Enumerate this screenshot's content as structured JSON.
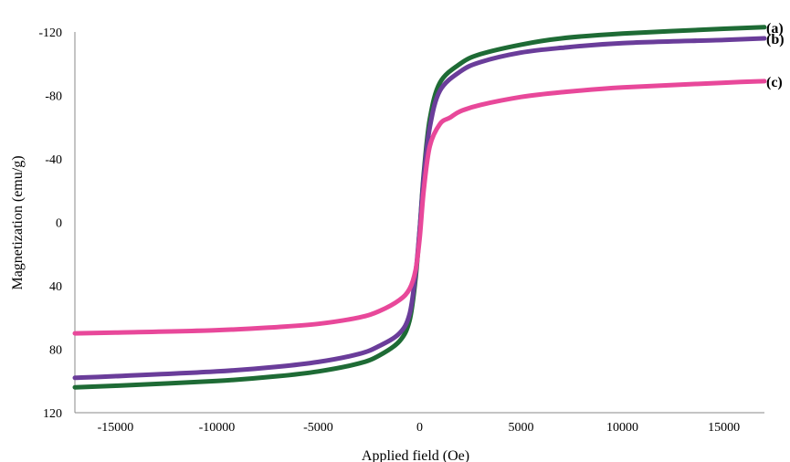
{
  "chart_data": {
    "type": "line",
    "title": "",
    "xlabel": "Applied field (Oe)",
    "ylabel": "Magnetization (emu/g)",
    "xlim": [
      -17000,
      17000
    ],
    "ylim": [
      -120,
      120
    ],
    "y_axis_inverted": true,
    "grid": false,
    "x_ticks": [
      -15000,
      -10000,
      -5000,
      0,
      5000,
      10000,
      15000
    ],
    "x_tick_labels": [
      "-15000",
      "-10000",
      "-5000",
      "0",
      "5000",
      "10000",
      "15000"
    ],
    "y_ticks": [
      -120,
      -80,
      -40,
      0,
      40,
      80,
      120
    ],
    "y_tick_labels": [
      "-120",
      "-80",
      "-40",
      "0",
      "40",
      "80",
      "120"
    ],
    "series": [
      {
        "name": "(a)",
        "color": "#1e6b35",
        "x": [
          -17000,
          -15000,
          -10000,
          -7000,
          -5000,
          -3000,
          -2000,
          -1000,
          -500,
          -200,
          0,
          200,
          500,
          1000,
          2000,
          3000,
          5000,
          7000,
          10000,
          15000,
          17000
        ],
        "y": [
          104,
          103,
          100,
          97,
          94,
          89,
          84,
          75,
          62,
          35,
          5,
          -30,
          -65,
          -88,
          -100,
          -106,
          -112,
          -116,
          -119,
          -122,
          -123
        ]
      },
      {
        "name": "(b)",
        "color": "#6a3d9a",
        "x": [
          -17000,
          -15000,
          -10000,
          -7000,
          -5000,
          -3000,
          -2000,
          -1000,
          -500,
          -200,
          0,
          200,
          500,
          1000,
          2000,
          3000,
          5000,
          7000,
          10000,
          15000,
          17000
        ],
        "y": [
          98,
          97,
          94,
          91,
          88,
          83,
          78,
          70,
          58,
          32,
          5,
          -28,
          -60,
          -83,
          -95,
          -101,
          -107,
          -110,
          -113,
          -115,
          -116
        ]
      },
      {
        "name": "(c)",
        "color": "#e8489a",
        "x": [
          -17000,
          -15000,
          -10000,
          -7000,
          -5000,
          -3000,
          -2000,
          -1000,
          -500,
          -200,
          0,
          200,
          500,
          1000,
          1500,
          2000,
          3000,
          5000,
          7000,
          10000,
          15000,
          17000
        ],
        "y": [
          70,
          69.5,
          68,
          66,
          64,
          60,
          56,
          49,
          42,
          30,
          10,
          -20,
          -48,
          -62,
          -66,
          -70,
          -74,
          -79,
          -82,
          -85,
          -88,
          -89
        ]
      }
    ]
  }
}
